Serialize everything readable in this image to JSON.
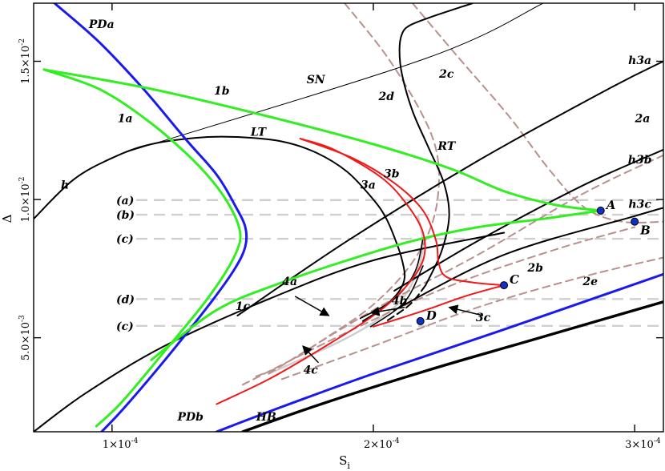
{
  "chart_data": {
    "type": "line",
    "title": "",
    "xlabel": "S_i",
    "ylabel": "Δ",
    "x_ticks": [
      {
        "value": 0.0001,
        "mantissa": "1",
        "exp": "-4"
      },
      {
        "value": 0.0002,
        "mantissa": "2",
        "exp": "-4"
      },
      {
        "value": 0.0003,
        "mantissa": "3",
        "exp": "-4"
      }
    ],
    "y_ticks": [
      {
        "value": 0.005,
        "mantissa": "5.0",
        "exp": "-3"
      },
      {
        "value": 0.01,
        "mantissa": "1.0",
        "exp": "-2"
      },
      {
        "value": 0.015,
        "mantissa": "1.5",
        "exp": "-2"
      }
    ],
    "xlim": [
      7e-05,
      0.000311
    ],
    "ylim": [
      0.0016,
      0.0171
    ],
    "colors": {
      "black": "#000000",
      "green": "#33ee22",
      "blue": "#1a1aee",
      "red": "#ee1a1a",
      "pink": "#b8908c",
      "grey": "#cfcfcf",
      "point": "#1030c8"
    },
    "series": [
      {
        "id": "SN",
        "style": "thin",
        "color": "black",
        "points": [
          [
            0.000105,
            0.0117
          ],
          [
            0.00022,
            0.0151
          ],
          [
            0.000265,
            0.0171
          ]
        ]
      },
      {
        "id": "h",
        "style": "black",
        "color": "black",
        "points": [
          [
            7e-05,
            0.0093
          ],
          [
            8.5e-05,
            0.0107
          ],
          [
            0.0001,
            0.0115
          ],
          [
            0.000115,
            0.012
          ],
          [
            0.000135,
            0.01225
          ],
          [
            0.00015,
            0.01225
          ],
          [
            0.000165,
            0.0121
          ],
          [
            0.000178,
            0.0117
          ],
          [
            0.00019,
            0.011
          ],
          [
            0.0002,
            0.01
          ],
          [
            0.000205,
            0.0093
          ],
          [
            0.000209,
            0.0084
          ],
          [
            0.000211,
            0.0078
          ],
          [
            0.000212,
            0.0072
          ],
          [
            0.00021,
            0.0067
          ],
          [
            0.000204,
            0.0061
          ],
          [
            0.000196,
            0.0056
          ]
        ]
      },
      {
        "id": "RT",
        "style": "black",
        "color": "black",
        "points": [
          [
            0.00022,
            0.0069
          ],
          [
            0.000226,
            0.0081
          ],
          [
            0.000229,
            0.0094
          ],
          [
            0.000227,
            0.0106
          ],
          [
            0.000221,
            0.0119
          ],
          [
            0.000215,
            0.0132
          ],
          [
            0.000211,
            0.0145
          ],
          [
            0.00021,
            0.0154
          ],
          [
            0.000211,
            0.016
          ],
          [
            0.000214,
            0.0163
          ],
          [
            0.000222,
            0.0166
          ],
          [
            0.000238,
            0.0171
          ]
        ]
      },
      {
        "id": "RT-dash",
        "style": "black-dash",
        "color": "black",
        "points": [
          [
            0.00022,
            0.0069
          ],
          [
            0.000214,
            0.0062
          ],
          [
            0.000205,
            0.0056
          ]
        ]
      },
      {
        "id": "h3a",
        "style": "black",
        "color": "black",
        "points": [
          [
            0.000148,
            0.0058
          ],
          [
            0.00019,
            0.0085
          ],
          [
            0.00024,
            0.0114
          ],
          [
            0.00029,
            0.014
          ],
          [
            0.000311,
            0.015
          ]
        ]
      },
      {
        "id": "h3b",
        "style": "black",
        "color": "black",
        "points": [
          [
            0.000208,
            0.0067
          ],
          [
            0.00024,
            0.0085
          ],
          [
            0.00028,
            0.0105
          ],
          [
            0.000311,
            0.0118
          ]
        ]
      },
      {
        "id": "h3c",
        "style": "black",
        "color": "black",
        "points": [
          [
            0.000208,
            0.006
          ],
          [
            0.00025,
            0.008
          ],
          [
            0.0003,
            0.0094
          ],
          [
            0.000311,
            0.0097
          ]
        ]
      },
      {
        "id": "PDa",
        "style": "blue",
        "color": "blue",
        "points": [
          [
            7.8e-05,
            0.0171
          ],
          [
            9.5e-05,
            0.0157
          ],
          [
            0.000112,
            0.014
          ],
          [
            0.000128,
            0.0122
          ],
          [
            0.00014,
            0.0109
          ],
          [
            0.000147,
            0.0098
          ],
          [
            0.000151,
            0.009
          ],
          [
            0.000151,
            0.0083
          ],
          [
            0.000147,
            0.0075
          ],
          [
            0.000138,
            0.0063
          ],
          [
            0.000122,
            0.0044
          ],
          [
            0.000105,
            0.0025
          ],
          [
            9.6e-05,
            0.0016
          ]
        ]
      },
      {
        "id": "PDb",
        "style": "blue",
        "color": "blue",
        "points": [
          [
            0.00014,
            0.0016
          ],
          [
            0.000165,
            0.0025
          ],
          [
            0.0002,
            0.0037
          ],
          [
            0.00025,
            0.0053
          ],
          [
            0.000311,
            0.0073
          ]
        ]
      },
      {
        "id": "HB",
        "style": "thick",
        "color": "black",
        "points": [
          [
            0.00015,
            0.0016
          ],
          [
            0.00018,
            0.0026
          ],
          [
            0.00022,
            0.0038
          ],
          [
            0.00026,
            0.0049
          ],
          [
            0.000311,
            0.0063
          ]
        ]
      },
      {
        "id": "lower-h",
        "style": "black",
        "color": "black",
        "points": [
          [
            7e-05,
            0.0016
          ],
          [
            9e-05,
            0.003
          ],
          [
            0.00012,
            0.0047
          ],
          [
            0.00016,
            0.0064
          ],
          [
            0.0002,
            0.0078
          ],
          [
            0.00025,
            0.0088
          ]
        ]
      },
      {
        "id": "1a",
        "style": "green",
        "color": "green",
        "points": [
          [
            7.4e-05,
            0.0147
          ],
          [
            9.5e-05,
            0.014
          ],
          [
            0.000113,
            0.0129
          ],
          [
            0.000128,
            0.0117
          ],
          [
            0.000139,
            0.0106
          ],
          [
            0.000146,
            0.0096
          ],
          [
            0.000149,
            0.0088
          ],
          [
            0.000148,
            0.0082
          ],
          [
            0.000143,
            0.0073
          ],
          [
            0.000134,
            0.0061
          ],
          [
            0.00012,
            0.0045
          ],
          [
            0.000104,
            0.0027
          ],
          [
            9.4e-05,
            0.0018
          ]
        ]
      },
      {
        "id": "1b",
        "style": "green",
        "color": "green",
        "points": [
          [
            7.4e-05,
            0.0147
          ],
          [
            0.000115,
            0.014
          ],
          [
            0.00016,
            0.013
          ],
          [
            0.0002,
            0.012
          ],
          [
            0.00023,
            0.0111
          ],
          [
            0.00025,
            0.0103
          ],
          [
            0.00027,
            0.0098
          ],
          [
            0.000287,
            0.0096
          ]
        ]
      },
      {
        "id": "1c",
        "style": "green",
        "color": "green",
        "points": [
          [
            0.000115,
            0.0042
          ],
          [
            0.00014,
            0.006
          ],
          [
            0.000165,
            0.007
          ],
          [
            0.00019,
            0.0078
          ],
          [
            0.000215,
            0.0085
          ],
          [
            0.00024,
            0.009
          ],
          [
            0.000265,
            0.0093
          ],
          [
            0.000287,
            0.0096
          ]
        ]
      },
      {
        "id": "2a",
        "style": "pink",
        "color": "pink",
        "points": [
          [
            0.00016,
            0.0037
          ],
          [
            0.0002,
            0.006
          ],
          [
            0.00024,
            0.008
          ],
          [
            0.00028,
            0.0102
          ],
          [
            0.000311,
            0.0116
          ]
        ]
      },
      {
        "id": "2b",
        "style": "pink",
        "color": "pink",
        "points": [
          [
            0.00015,
            0.0033
          ],
          [
            0.00019,
            0.0052
          ],
          [
            0.00023,
            0.0069
          ],
          [
            0.00027,
            0.0082
          ],
          [
            0.0003,
            0.009
          ]
        ]
      },
      {
        "id": "2e",
        "style": "pink",
        "color": "pink",
        "points": [
          [
            0.000165,
            0.0035
          ],
          [
            0.0002,
            0.0047
          ],
          [
            0.00024,
            0.0061
          ],
          [
            0.00028,
            0.0072
          ],
          [
            0.000311,
            0.0079
          ]
        ]
      },
      {
        "id": "2c",
        "style": "pink",
        "color": "pink",
        "points": [
          [
            0.000215,
            0.0171
          ],
          [
            0.000232,
            0.0152
          ],
          [
            0.000252,
            0.013
          ],
          [
            0.000268,
            0.011
          ],
          [
            0.000281,
            0.0097
          ],
          [
            0.000295,
            0.0092
          ],
          [
            0.000311,
            0.0092
          ]
        ]
      },
      {
        "id": "2d",
        "style": "pink",
        "color": "pink",
        "points": [
          [
            0.000189,
            0.0171
          ],
          [
            0.000205,
            0.0152
          ],
          [
            0.000218,
            0.0132
          ],
          [
            0.000224,
            0.0118
          ],
          [
            0.000225,
            0.0104
          ],
          [
            0.000222,
            0.009
          ],
          [
            0.000214,
            0.0076
          ],
          [
            0.0002,
            0.0062
          ],
          [
            0.000182,
            0.005
          ],
          [
            0.000165,
            0.004
          ],
          [
            0.000155,
            0.0036
          ]
        ]
      },
      {
        "id": "3a",
        "style": "red",
        "color": "red",
        "points": [
          [
            0.00014,
            0.0026
          ],
          [
            0.00016,
            0.0035
          ],
          [
            0.00018,
            0.0046
          ],
          [
            0.0002,
            0.0058
          ],
          [
            0.000212,
            0.0068
          ],
          [
            0.000219,
            0.0078
          ],
          [
            0.000219,
            0.0088
          ],
          [
            0.000213,
            0.0098
          ],
          [
            0.000203,
            0.0108
          ],
          [
            0.000185,
            0.0118
          ],
          [
            0.000172,
            0.0122
          ]
        ]
      },
      {
        "id": "3b",
        "style": "red",
        "color": "red",
        "points": [
          [
            0.000172,
            0.0122
          ],
          [
            0.000192,
            0.0115
          ],
          [
            0.000208,
            0.0106
          ],
          [
            0.000219,
            0.0096
          ],
          [
            0.000224,
            0.0085
          ],
          [
            0.000225,
            0.0077
          ],
          [
            0.000228,
            0.0072
          ],
          [
            0.000238,
            0.007
          ],
          [
            0.00025,
            0.0069
          ]
        ]
      },
      {
        "id": "3c",
        "style": "red",
        "color": "red",
        "points": [
          [
            0.00025,
            0.0069
          ],
          [
            0.000235,
            0.0065
          ],
          [
            0.00022,
            0.006
          ],
          [
            0.0002,
            0.0054
          ]
        ]
      },
      {
        "id": "grey-loop",
        "style": "grey",
        "color": "grey",
        "points": [
          [
            0.00016,
            0.0037
          ],
          [
            0.00019,
            0.005
          ],
          [
            0.000208,
            0.0061
          ],
          [
            0.000216,
            0.0072
          ],
          [
            0.000219,
            0.0084
          ],
          [
            0.000217,
            0.0094
          ]
        ]
      },
      {
        "id": "black-bundle-a",
        "style": "black-thin",
        "color": "black",
        "points": [
          [
            0.000195,
            0.0057
          ],
          [
            0.000208,
            0.0064
          ],
          [
            0.000216,
            0.0074
          ],
          [
            0.000219,
            0.0086
          ]
        ]
      },
      {
        "id": "black-bundle-b",
        "style": "black-thin",
        "color": "black",
        "points": [
          [
            0.000199,
            0.0054
          ],
          [
            0.000212,
            0.0063
          ],
          [
            0.000219,
            0.0076
          ]
        ]
      }
    ],
    "dashed_levels": [
      {
        "label": "(a)",
        "y": 0.00998
      },
      {
        "label": "(b)",
        "y": 0.00945
      },
      {
        "label": "(c)",
        "y": 0.00858
      },
      {
        "label": "(d)",
        "y": 0.0064
      },
      {
        "label": "(c)",
        "y": 0.00543
      }
    ],
    "points": [
      {
        "label": "A",
        "x": 0.000287,
        "y": 0.0096
      },
      {
        "label": "B",
        "x": 0.0003,
        "y": 0.0092
      },
      {
        "label": "C",
        "x": 0.00025,
        "y": 0.0069
      },
      {
        "label": "D",
        "x": 0.000218,
        "y": 0.0056
      }
    ],
    "curve_labels": [
      {
        "text": "PDa",
        "x": 9.6e-05,
        "y": 0.0162
      },
      {
        "text": "SN",
        "x": 0.000178,
        "y": 0.0142
      },
      {
        "text": "1b",
        "x": 0.000142,
        "y": 0.0138
      },
      {
        "text": "1a",
        "x": 0.000105,
        "y": 0.0128
      },
      {
        "text": "LT",
        "x": 0.000156,
        "y": 0.0123
      },
      {
        "text": "h",
        "x": 8.2e-05,
        "y": 0.0104
      },
      {
        "text": "2d",
        "x": 0.000205,
        "y": 0.0136
      },
      {
        "text": "2c",
        "x": 0.000228,
        "y": 0.0144
      },
      {
        "text": "RT",
        "x": 0.000228,
        "y": 0.0118
      },
      {
        "text": "3b",
        "x": 0.000207,
        "y": 0.0108
      },
      {
        "text": "3a",
        "x": 0.000198,
        "y": 0.0104
      },
      {
        "text": "h3a",
        "x": 0.000302,
        "y": 0.0149
      },
      {
        "text": "2a",
        "x": 0.000303,
        "y": 0.0128
      },
      {
        "text": "h3b",
        "x": 0.000302,
        "y": 0.0113
      },
      {
        "text": "h3c",
        "x": 0.000302,
        "y": 0.0097
      },
      {
        "text": "2b",
        "x": 0.000262,
        "y": 0.0074
      },
      {
        "text": "2e",
        "x": 0.000283,
        "y": 0.0069
      },
      {
        "text": "4a",
        "x": 0.000168,
        "y": 0.0069
      },
      {
        "text": "4b",
        "x": 0.00021,
        "y": 0.0062
      },
      {
        "text": "1c",
        "x": 0.00015,
        "y": 0.006
      },
      {
        "text": "3c",
        "x": 0.000242,
        "y": 0.0056
      },
      {
        "text": "4c",
        "x": 0.000176,
        "y": 0.0037
      },
      {
        "text": "PDb",
        "x": 0.00013,
        "y": 0.002
      },
      {
        "text": "HB",
        "x": 0.000159,
        "y": 0.002
      }
    ],
    "arrows": [
      {
        "label": "4a",
        "from": [
          0.00017,
          0.0065
        ],
        "to": [
          0.000183,
          0.0058
        ]
      },
      {
        "label": "4b",
        "from": [
          0.000212,
          0.0061
        ],
        "to": [
          0.000199,
          0.0059
        ]
      },
      {
        "label": "3c",
        "from": [
          0.000242,
          0.0058
        ],
        "to": [
          0.000229,
          0.0061
        ]
      },
      {
        "label": "4c",
        "from": [
          0.000179,
          0.0041
        ],
        "to": [
          0.000173,
          0.0047
        ]
      }
    ]
  }
}
